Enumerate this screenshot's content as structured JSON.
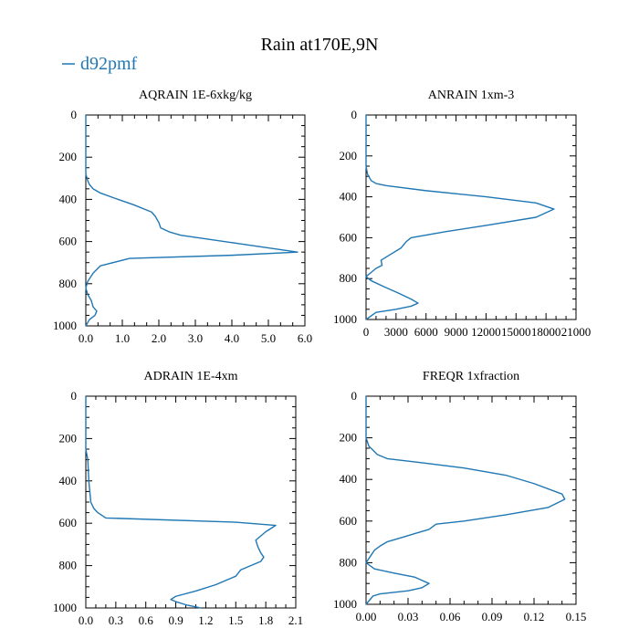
{
  "chart_data": {
    "type": "line",
    "title": "Rain at170E,9N",
    "legend": {
      "entries": [
        {
          "name": "d92pmf",
          "color": "#1f77b4"
        }
      ],
      "placement": "top-left"
    },
    "y_axis": {
      "label": "",
      "ylim": [
        1000,
        0
      ],
      "ticks": [
        "0",
        "200",
        "400",
        "600",
        "800",
        "1000"
      ]
    },
    "panels": [
      {
        "title": "AQRAIN  1E-6xkg/kg",
        "xlim": [
          0,
          6.0
        ],
        "xticks": [
          "0.0",
          "1.0",
          "2.0",
          "3.0",
          "4.0",
          "5.0",
          "6.0"
        ],
        "series": [
          {
            "name": "d92pmf",
            "points": [
              [
                0,
                0
              ],
              [
                0,
                100
              ],
              [
                0,
                280
              ],
              [
                0.05,
                310
              ],
              [
                0.1,
                330
              ],
              [
                0.2,
                350
              ],
              [
                0.4,
                370
              ],
              [
                0.8,
                395
              ],
              [
                1.3,
                425
              ],
              [
                1.8,
                460
              ],
              [
                1.9,
                480
              ],
              [
                2.0,
                510
              ],
              [
                2.05,
                535
              ],
              [
                2.3,
                555
              ],
              [
                2.6,
                570
              ],
              [
                4.2,
                610
              ],
              [
                5.8,
                650
              ],
              [
                4.0,
                665
              ],
              [
                1.2,
                680
              ],
              [
                0.4,
                715
              ],
              [
                0.2,
                750
              ],
              [
                0.05,
                790
              ],
              [
                0,
                820
              ],
              [
                0.05,
                850
              ],
              [
                0.15,
                880
              ],
              [
                0.2,
                910
              ],
              [
                0.3,
                930
              ],
              [
                0.25,
                950
              ],
              [
                0.1,
                970
              ],
              [
                0,
                1000
              ]
            ]
          }
        ]
      },
      {
        "title": "ANRAIN  1xm-3",
        "xlim": [
          0,
          21000
        ],
        "xticks": [
          "0",
          "3000",
          "6000",
          "9000",
          "12000",
          "15000",
          "18000",
          "21000"
        ],
        "series": [
          {
            "name": "d92pmf",
            "points": [
              [
                0,
                0
              ],
              [
                0,
                100
              ],
              [
                0,
                250
              ],
              [
                150,
                290
              ],
              [
                500,
                320
              ],
              [
                1000,
                335
              ],
              [
                2000,
                345
              ],
              [
                6000,
                370
              ],
              [
                12000,
                400
              ],
              [
                17000,
                430
              ],
              [
                18800,
                460
              ],
              [
                17000,
                500
              ],
              [
                12000,
                540
              ],
              [
                8000,
                570
              ],
              [
                4500,
                600
              ],
              [
                4000,
                620
              ],
              [
                3500,
                650
              ],
              [
                2500,
                680
              ],
              [
                1500,
                710
              ],
              [
                1600,
                735
              ],
              [
                1000,
                750
              ],
              [
                500,
                770
              ],
              [
                0,
                790
              ],
              [
                500,
                810
              ],
              [
                1800,
                840
              ],
              [
                3200,
                870
              ],
              [
                4500,
                900
              ],
              [
                5200,
                920
              ],
              [
                4500,
                935
              ],
              [
                3000,
                950
              ],
              [
                1000,
                965
              ],
              [
                0,
                1000
              ]
            ]
          }
        ]
      },
      {
        "title": "ADRAIN  1E-4xm",
        "xlim": [
          0,
          2.1
        ],
        "xticks": [
          "0.0",
          "0.3",
          "0.6",
          "0.9",
          "1.2",
          "1.5",
          "1.8",
          "2.1"
        ],
        "series": [
          {
            "name": "d92pmf",
            "points": [
              [
                0,
                0
              ],
              [
                0,
                250
              ],
              [
                0.02,
                300
              ],
              [
                0.03,
                400
              ],
              [
                0.05,
                500
              ],
              [
                0.08,
                530
              ],
              [
                0.12,
                550
              ],
              [
                0.2,
                575
              ],
              [
                1.5,
                595
              ],
              [
                1.9,
                610
              ],
              [
                1.8,
                640
              ],
              [
                1.7,
                680
              ],
              [
                1.72,
                710
              ],
              [
                1.75,
                740
              ],
              [
                1.78,
                760
              ],
              [
                1.75,
                780
              ],
              [
                1.65,
                800
              ],
              [
                1.55,
                820
              ],
              [
                1.5,
                850
              ],
              [
                1.3,
                890
              ],
              [
                1.1,
                920
              ],
              [
                0.9,
                945
              ],
              [
                0.85,
                960
              ],
              [
                0.9,
                970
              ],
              [
                1.0,
                985
              ],
              [
                1.1,
                995
              ],
              [
                1.15,
                1000
              ]
            ]
          }
        ]
      },
      {
        "title": "FREQR  1xfraction",
        "xlim": [
          0,
          0.15
        ],
        "xticks": [
          "0.00",
          "0.03",
          "0.06",
          "0.09",
          "0.12",
          "0.15"
        ],
        "series": [
          {
            "name": "d92pmf",
            "points": [
              [
                0,
                0
              ],
              [
                0,
                200
              ],
              [
                0.002,
                240
              ],
              [
                0.005,
                260
              ],
              [
                0.008,
                280
              ],
              [
                0.015,
                300
              ],
              [
                0.04,
                320
              ],
              [
                0.07,
                345
              ],
              [
                0.1,
                380
              ],
              [
                0.12,
                420
              ],
              [
                0.14,
                470
              ],
              [
                0.142,
                495
              ],
              [
                0.13,
                535
              ],
              [
                0.1,
                570
              ],
              [
                0.07,
                600
              ],
              [
                0.05,
                615
              ],
              [
                0.045,
                640
              ],
              [
                0.035,
                660
              ],
              [
                0.025,
                680
              ],
              [
                0.015,
                700
              ],
              [
                0.01,
                720
              ],
              [
                0.006,
                740
              ],
              [
                0.003,
                770
              ],
              [
                0,
                800
              ],
              [
                0.006,
                830
              ],
              [
                0.02,
                850
              ],
              [
                0.035,
                870
              ],
              [
                0.045,
                900
              ],
              [
                0.04,
                920
              ],
              [
                0.03,
                935
              ],
              [
                0.01,
                950
              ],
              [
                0.005,
                960
              ],
              [
                0,
                1000
              ]
            ]
          }
        ]
      }
    ]
  }
}
